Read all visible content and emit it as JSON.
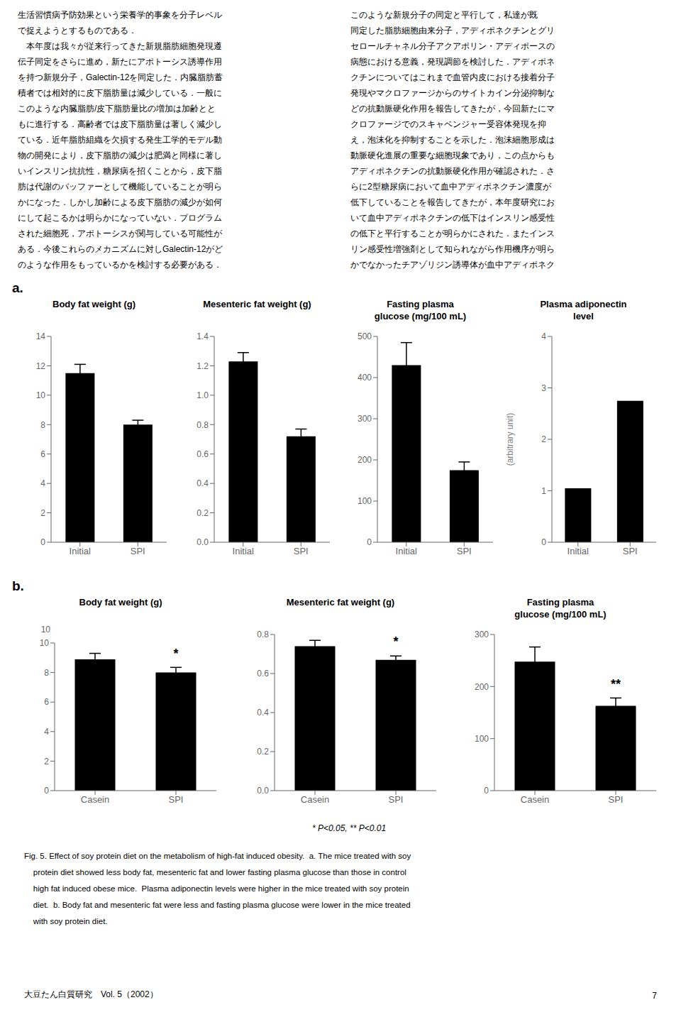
{
  "header_text_left": [
    "生活習慣病予防効果という栄養学的事象を分子レベル",
    "で捉えようとするものである．",
    "　本年度は我々が従来行ってきた新規脂肪細胞発現遵",
    "伝子同定をさらに進め，新たにアポトーシス誘導作用",
    "を持つ新規分子，Galectin-12を同定した．内臓脂肪蓄",
    "積者では相対的に皮下脂肪量は減少している．一般に",
    "このような内臓脂肪/皮下脂肪量比の増加は加齢とと",
    "もに進行する．高齢者では皮下脂肪量は著しく減少し",
    "ている．近年脂肪組織を欠損する発生工学的モデル動",
    "物の開発により，皮下脂肪の減少は肥満と同様に著し",
    "いインスリン抗抗性，糖尿病を招くことから，皮下脂",
    "肪は代謝のバッファーとして機能していることが明ら",
    "かになった．しかし加齢による皮下脂肪の減少が如何",
    "にして起こるかは明らかになっていない．プログラム",
    "された細胞死，アポトーシスが関与している可能性が",
    "ある．今後これらのメカニズムに対しGalectin-12がど",
    "のような作用をもっているかを検討する必要がある．"
  ],
  "header_text_right": [
    "このような新規分子の同定と平行して，私達が既",
    "同定した脂肪細胞由来分子，アディポネクチンとグリ",
    "セロールチャネル分子アクアポリン・アディポースの",
    "病態における意義，発現調節を検討した．アディポネ",
    "クチンについてはこれまで血管内皮における接着分子",
    "発現やマクロファージからのサイトカイン分泌抑制な",
    "どの抗動脈硬化作用を報告してきたが，今回新たにマ",
    "クロファージでのスキャベンジャー受容体発現を抑",
    "え，泡沫化を抑制することを示した．泡沫細胞形成は",
    "動脈硬化進展の重要な細胞現象であり，この点からも",
    "アディポネクチンの抗動脈硬化作用が確認された．さ",
    "らに2型糖尿病において血中アディポネクチン濃度が",
    "低下していることを報告してきたが，本年度研究にお",
    "いて血中アディポネクチンの低下はインスリン感受性",
    "の低下と平行することが明らかにされた．またインス",
    "リン感受性増強剤として知られながら作用機序が明ら",
    "かでなかったチアゾリジン誘導体が血中アディポネク"
  ],
  "panel_labels": [
    "a.",
    "b."
  ],
  "chart_data": [
    {
      "type": "bar",
      "title": "Body fat weight (g)",
      "categories": [
        "Initial",
        "SPI"
      ],
      "values": [
        11.5,
        8.0
      ],
      "errors": [
        0.6,
        0.3
      ],
      "color": "#000000",
      "ylim": [
        0,
        14
      ],
      "yticks": [
        0,
        2,
        4,
        6,
        8,
        10,
        12,
        14
      ],
      "grid": false
    },
    {
      "type": "bar",
      "title": "Mesenteric fat weight (g)",
      "categories": [
        "Initial",
        "SPI"
      ],
      "values": [
        1.23,
        0.72
      ],
      "errors": [
        0.06,
        0.05
      ],
      "color": "#000000",
      "ylim": [
        0,
        1.4
      ],
      "yticks": [
        {
          "value": 0,
          "label": "0.0"
        },
        0.2,
        0.4,
        0.6,
        0.8,
        {
          "value": 1.0,
          "label": "1.0"
        },
        1.2,
        1.4
      ],
      "grid": false
    },
    {
      "type": "bar",
      "title": "Fasting plasma\nglucose (mg/100 mL)",
      "categories": [
        "Initial",
        "SPI"
      ],
      "values": [
        430,
        175
      ],
      "errors": [
        55,
        20
      ],
      "color": "#000000",
      "ylim": [
        0,
        500
      ],
      "yticks": [
        0,
        100,
        200,
        300,
        400,
        500
      ],
      "grid": false
    },
    {
      "type": "bar",
      "title": "Plasma adiponectin\nlevel",
      "categories": [
        "Initial",
        "SPI"
      ],
      "values": [
        1.05,
        2.75
      ],
      "errors": [
        0,
        0
      ],
      "color": "#000000",
      "ylim": [
        0,
        4
      ],
      "yticks": [
        0,
        1,
        2,
        3,
        4
      ],
      "ylabel": "(arbitrary unit)",
      "grid": false
    },
    {
      "type": "bar",
      "title": "Body fat weight (g)",
      "categories": [
        "Casein",
        "SPI"
      ],
      "values": [
        8.9,
        8.0
      ],
      "errors": [
        0.4,
        0.35
      ],
      "color": "#000000",
      "ylim": [
        0,
        10
      ],
      "yticks": [
        0,
        2,
        4,
        6,
        8,
        10
      ],
      "grid": false,
      "annotations": [
        {
          "category": "SPI",
          "text": "*"
        },
        {
          "y": 10,
          "text": "10"
        }
      ]
    },
    {
      "type": "bar",
      "title": "Mesenteric fat weight (g)",
      "categories": [
        "Casein",
        "SPI"
      ],
      "values": [
        0.74,
        0.67
      ],
      "errors": [
        0.03,
        0.02
      ],
      "color": "#000000",
      "ylim": [
        0,
        0.8
      ],
      "yticks": [
        {
          "value": 0,
          "label": "0.0"
        },
        0.2,
        0.4,
        0.6,
        0.8
      ],
      "grid": false,
      "annotations": [
        {
          "category": "SPI",
          "text": "*"
        }
      ]
    },
    {
      "type": "bar",
      "title": "Fasting plasma\nglucose (mg/100 mL)",
      "categories": [
        "Casein",
        "SPI"
      ],
      "values": [
        248,
        163
      ],
      "errors": [
        28,
        15
      ],
      "color": "#000000",
      "ylim": [
        0,
        300
      ],
      "yticks": [
        0,
        100,
        200,
        300
      ],
      "grid": false,
      "annotations": [
        {
          "category": "SPI",
          "text": "**"
        }
      ]
    }
  ],
  "sig_note": "* P<0.05, ** P<0.01",
  "caption": [
    "Fig. 5. Effect of soy protein diet on the metabolism of high-fat induced obesity.  a. The mice treated with soy",
    "    protein diet showed less body fat, mesenteric fat and lower fasting plasma glucose than those in control",
    "    high fat induced obese mice.  Plasma adiponectin levels were higher in the mice treated with soy protein",
    "    diet.  b. Body fat and mesenteric fat were less and fasting plasma glucose were lower in the mice treated",
    "    with soy protein diet."
  ],
  "footer_left": "大豆たん白質研究　Vol. 5（2002）",
  "footer_right": "7"
}
